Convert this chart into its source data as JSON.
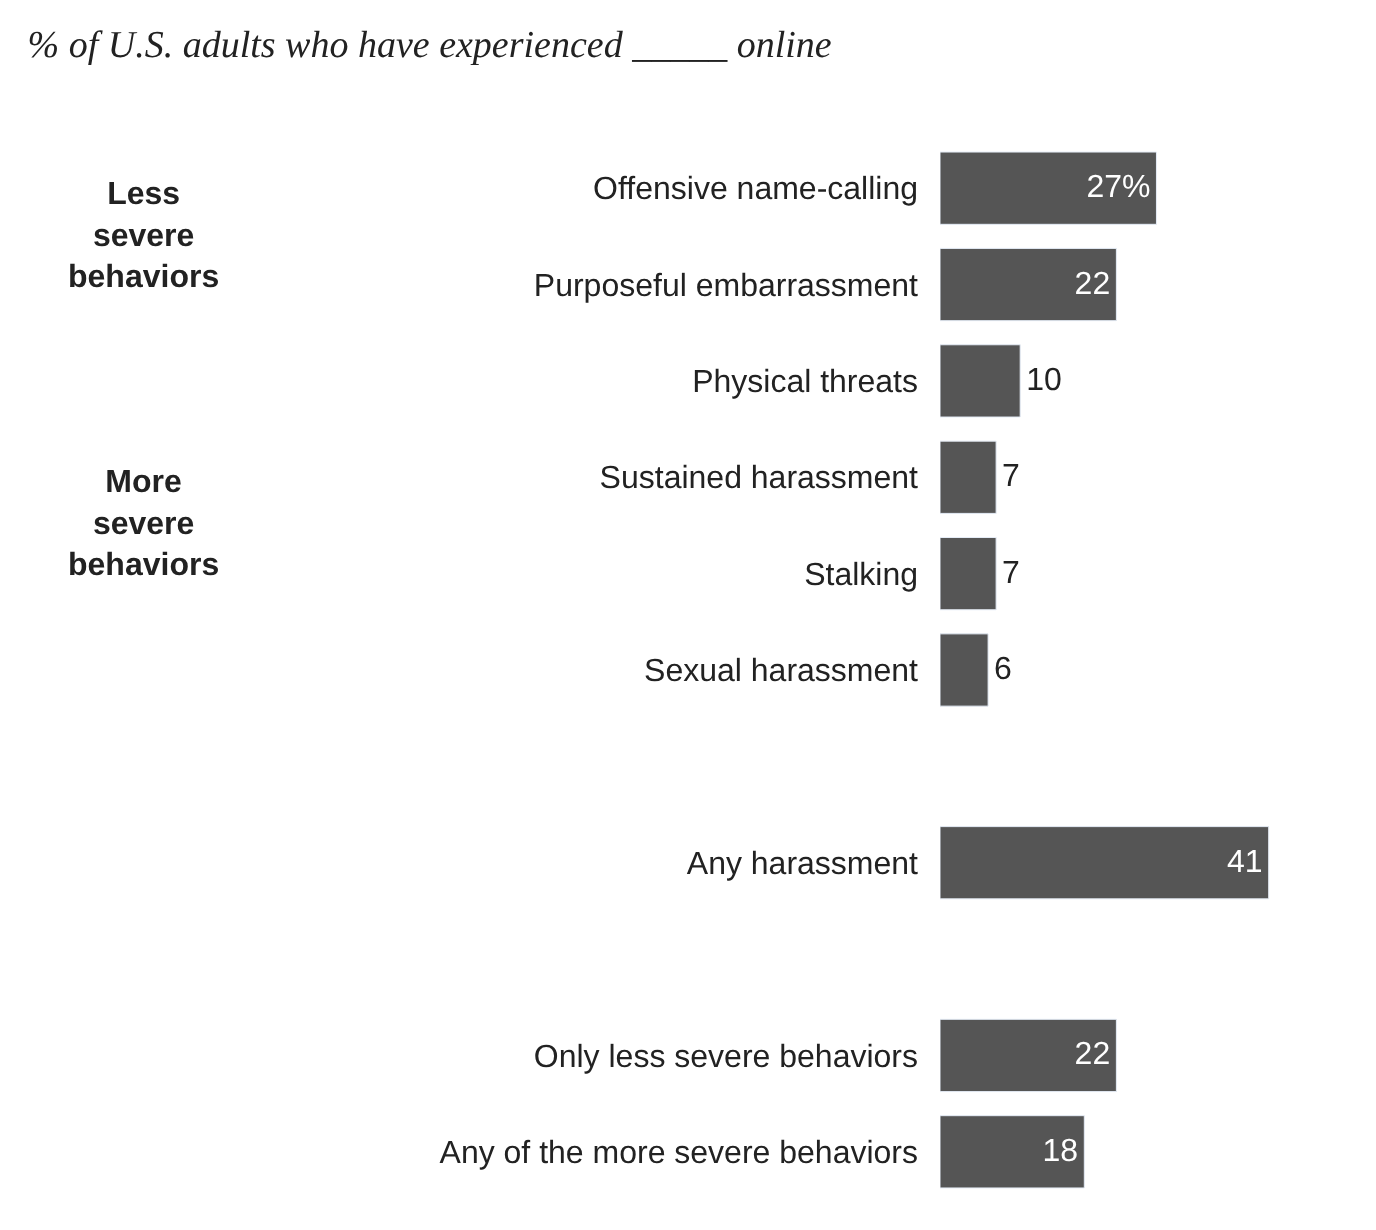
{
  "chart_data": {
    "type": "bar",
    "orientation": "horizontal",
    "title": "% of U.S. adults who have experienced _____ online",
    "categories": [
      "Offensive name-calling",
      "Purposeful embarrassment",
      "Physical threats",
      "Sustained harassment",
      "Stalking",
      "Sexual harassment",
      null,
      "Any harassment",
      null,
      "Only less severe behaviors",
      "Any of the more severe behaviors"
    ],
    "values": [
      27,
      22,
      10,
      7,
      7,
      6,
      null,
      41,
      null,
      22,
      18
    ],
    "value_labels": [
      "27%",
      "22",
      "10",
      "7",
      "7",
      "6",
      null,
      "41",
      null,
      "22",
      "18"
    ],
    "color": "#555555",
    "annotations": [
      "Less severe behaviors",
      "More severe behaviors"
    ],
    "legend": false
  }
}
